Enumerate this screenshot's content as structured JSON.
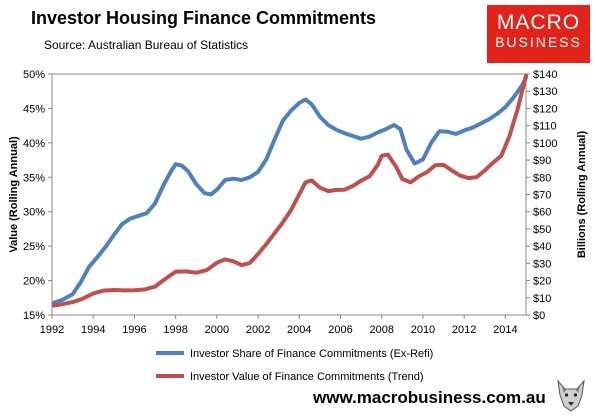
{
  "header": {
    "title": "Investor Housing Finance Commitments",
    "source": "Source: Australian Bureau of Statistics"
  },
  "logo": {
    "line1": "MACRO",
    "line2": "BUSINESS"
  },
  "footer": {
    "url": "www.macrobusiness.com.au"
  },
  "colors": {
    "share": "#4f81bd",
    "value": "#c0504d",
    "logo_bg": "#e2231a"
  },
  "chart_data": {
    "type": "line",
    "title": "Investor Housing Finance Commitments",
    "xlabel": "",
    "ylabel_left": "Value (Rolling Annual)",
    "ylabel_right": "Billions (Rolling Annual)",
    "xlim": [
      1992,
      2015
    ],
    "xticks": [
      1992,
      1994,
      1996,
      1998,
      2000,
      2002,
      2004,
      2006,
      2008,
      2010,
      2012,
      2014
    ],
    "xtick_labels": [
      "1992",
      "1994",
      "1996",
      "1998",
      "2000",
      "2002",
      "2004",
      "2006",
      "2008",
      "2010",
      "2012",
      "2014"
    ],
    "ylim_left": [
      15,
      50
    ],
    "yticks_left": [
      15,
      20,
      25,
      30,
      35,
      40,
      45,
      50
    ],
    "ytick_labels_left": [
      "15%",
      "20%",
      "25%",
      "30%",
      "35%",
      "40%",
      "45%",
      "50%"
    ],
    "ylim_right": [
      0,
      140
    ],
    "yticks_right": [
      0,
      10,
      20,
      30,
      40,
      50,
      60,
      70,
      80,
      90,
      100,
      110,
      120,
      130,
      140
    ],
    "ytick_labels_right": [
      "$0",
      "$10",
      "$20",
      "$30",
      "$40",
      "$50",
      "$60",
      "$70",
      "$80",
      "$90",
      "$100",
      "$110",
      "$120",
      "$130",
      "$140"
    ],
    "grid": false,
    "legend_position": "bottom",
    "series": [
      {
        "name": "Investor Share of Finance Commitments (Ex-Refi)",
        "axis": "left",
        "color": "#4f81bd",
        "x": [
          1992.1,
          1992.5,
          1993.0,
          1993.4,
          1993.8,
          1994.2,
          1994.6,
          1995.0,
          1995.4,
          1995.8,
          1996.2,
          1996.6,
          1997.0,
          1997.4,
          1997.8,
          1998.0,
          1998.3,
          1998.6,
          1999.0,
          1999.4,
          1999.7,
          2000.0,
          2000.4,
          2000.8,
          2001.2,
          2001.6,
          2002.0,
          2002.4,
          2002.8,
          2003.2,
          2003.6,
          2004.0,
          2004.3,
          2004.6,
          2005.0,
          2005.4,
          2005.8,
          2006.2,
          2006.6,
          2007.0,
          2007.4,
          2007.8,
          2008.2,
          2008.6,
          2008.9,
          2009.2,
          2009.6,
          2010.0,
          2010.4,
          2010.8,
          2011.2,
          2011.6,
          2012.0,
          2012.4,
          2012.8,
          2013.2,
          2013.6,
          2014.0,
          2014.4,
          2014.8,
          2015.0
        ],
        "y": [
          16.8,
          17.2,
          18.0,
          19.8,
          22.0,
          23.4,
          24.9,
          26.6,
          28.2,
          29.0,
          29.4,
          29.8,
          31.2,
          33.8,
          36.0,
          36.9,
          36.7,
          35.9,
          34.0,
          32.7,
          32.5,
          33.2,
          34.6,
          34.8,
          34.6,
          35.0,
          35.8,
          37.6,
          40.5,
          43.2,
          44.7,
          45.8,
          46.3,
          45.6,
          43.8,
          42.6,
          41.9,
          41.4,
          41.0,
          40.6,
          40.9,
          41.5,
          42.0,
          42.6,
          42.0,
          39.0,
          37.0,
          37.6,
          40.0,
          41.7,
          41.6,
          41.3,
          41.8,
          42.2,
          42.8,
          43.4,
          44.2,
          45.2,
          46.6,
          48.3,
          49.5
        ]
      },
      {
        "name": "Investor Value of Finance Commitments (Trend)",
        "axis": "right",
        "color": "#c0504d",
        "x": [
          1992.1,
          1992.5,
          1993.0,
          1993.5,
          1994.0,
          1994.5,
          1995.0,
          1995.5,
          1996.0,
          1996.5,
          1997.0,
          1997.5,
          1998.0,
          1998.5,
          1999.0,
          1999.5,
          2000.0,
          2000.4,
          2000.8,
          2001.2,
          2001.6,
          2002.0,
          2002.4,
          2002.8,
          2003.2,
          2003.6,
          2004.0,
          2004.3,
          2004.6,
          2005.0,
          2005.4,
          2005.8,
          2006.2,
          2006.6,
          2007.0,
          2007.4,
          2007.8,
          2008.0,
          2008.3,
          2008.7,
          2009.0,
          2009.4,
          2009.8,
          2010.2,
          2010.6,
          2011.0,
          2011.4,
          2011.8,
          2012.2,
          2012.6,
          2013.0,
          2013.4,
          2013.8,
          2014.2,
          2014.6,
          2015.0
        ],
        "y": [
          5.5,
          6.3,
          7.5,
          9.5,
          12.5,
          14.2,
          14.5,
          14.3,
          14.4,
          14.8,
          16.5,
          21.0,
          25.2,
          25.3,
          24.6,
          26.0,
          30.4,
          32.3,
          31.2,
          29.0,
          30.2,
          35.5,
          41.2,
          47.5,
          53.8,
          61.0,
          70.2,
          77.0,
          78.2,
          74.0,
          72.0,
          72.7,
          72.8,
          75.0,
          78.0,
          80.5,
          87.0,
          92.5,
          93.2,
          86.0,
          79.0,
          77.0,
          80.5,
          83.0,
          87.0,
          87.2,
          84.0,
          81.0,
          79.5,
          80.0,
          84.0,
          88.5,
          92.5,
          104.0,
          120.0,
          139.0
        ]
      }
    ]
  }
}
